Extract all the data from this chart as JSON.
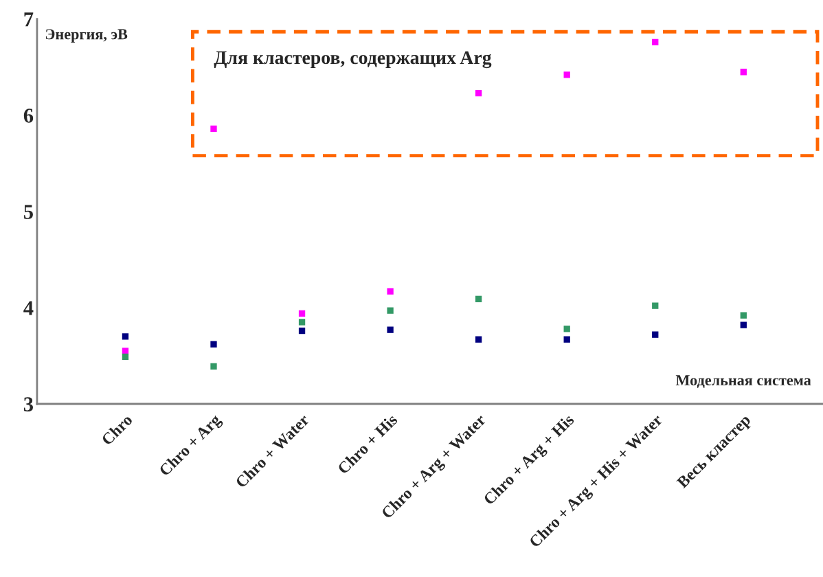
{
  "chart_data": {
    "type": "scatter",
    "xlabel": "Модельная система",
    "ylabel": "Энергия, эВ",
    "categories": [
      "Chro",
      "Chro + Arg",
      "Chro + Water",
      "Chro + His",
      "Chro + Arg + Water",
      "Chro + Arg + His",
      "Chro + Arg + His + Water",
      "Весь кластер"
    ],
    "series": [
      {
        "color": "#ff00ff",
        "values": [
          3.55,
          5.86,
          3.94,
          4.17,
          6.23,
          6.42,
          6.76,
          6.45
        ]
      },
      {
        "color": "#339966",
        "values": [
          3.49,
          3.39,
          3.85,
          3.97,
          4.09,
          3.78,
          4.02,
          3.92
        ]
      },
      {
        "color": "#000080",
        "values": [
          3.7,
          3.62,
          3.76,
          3.77,
          3.67,
          3.67,
          3.72,
          3.82
        ]
      }
    ],
    "marker": "square",
    "ylim": [
      3,
      7
    ],
    "yticks": [
      3,
      4,
      5,
      6,
      7
    ],
    "grid": false,
    "legend": false,
    "annotations": [
      "Для кластеров, содержащих Arg"
    ]
  }
}
